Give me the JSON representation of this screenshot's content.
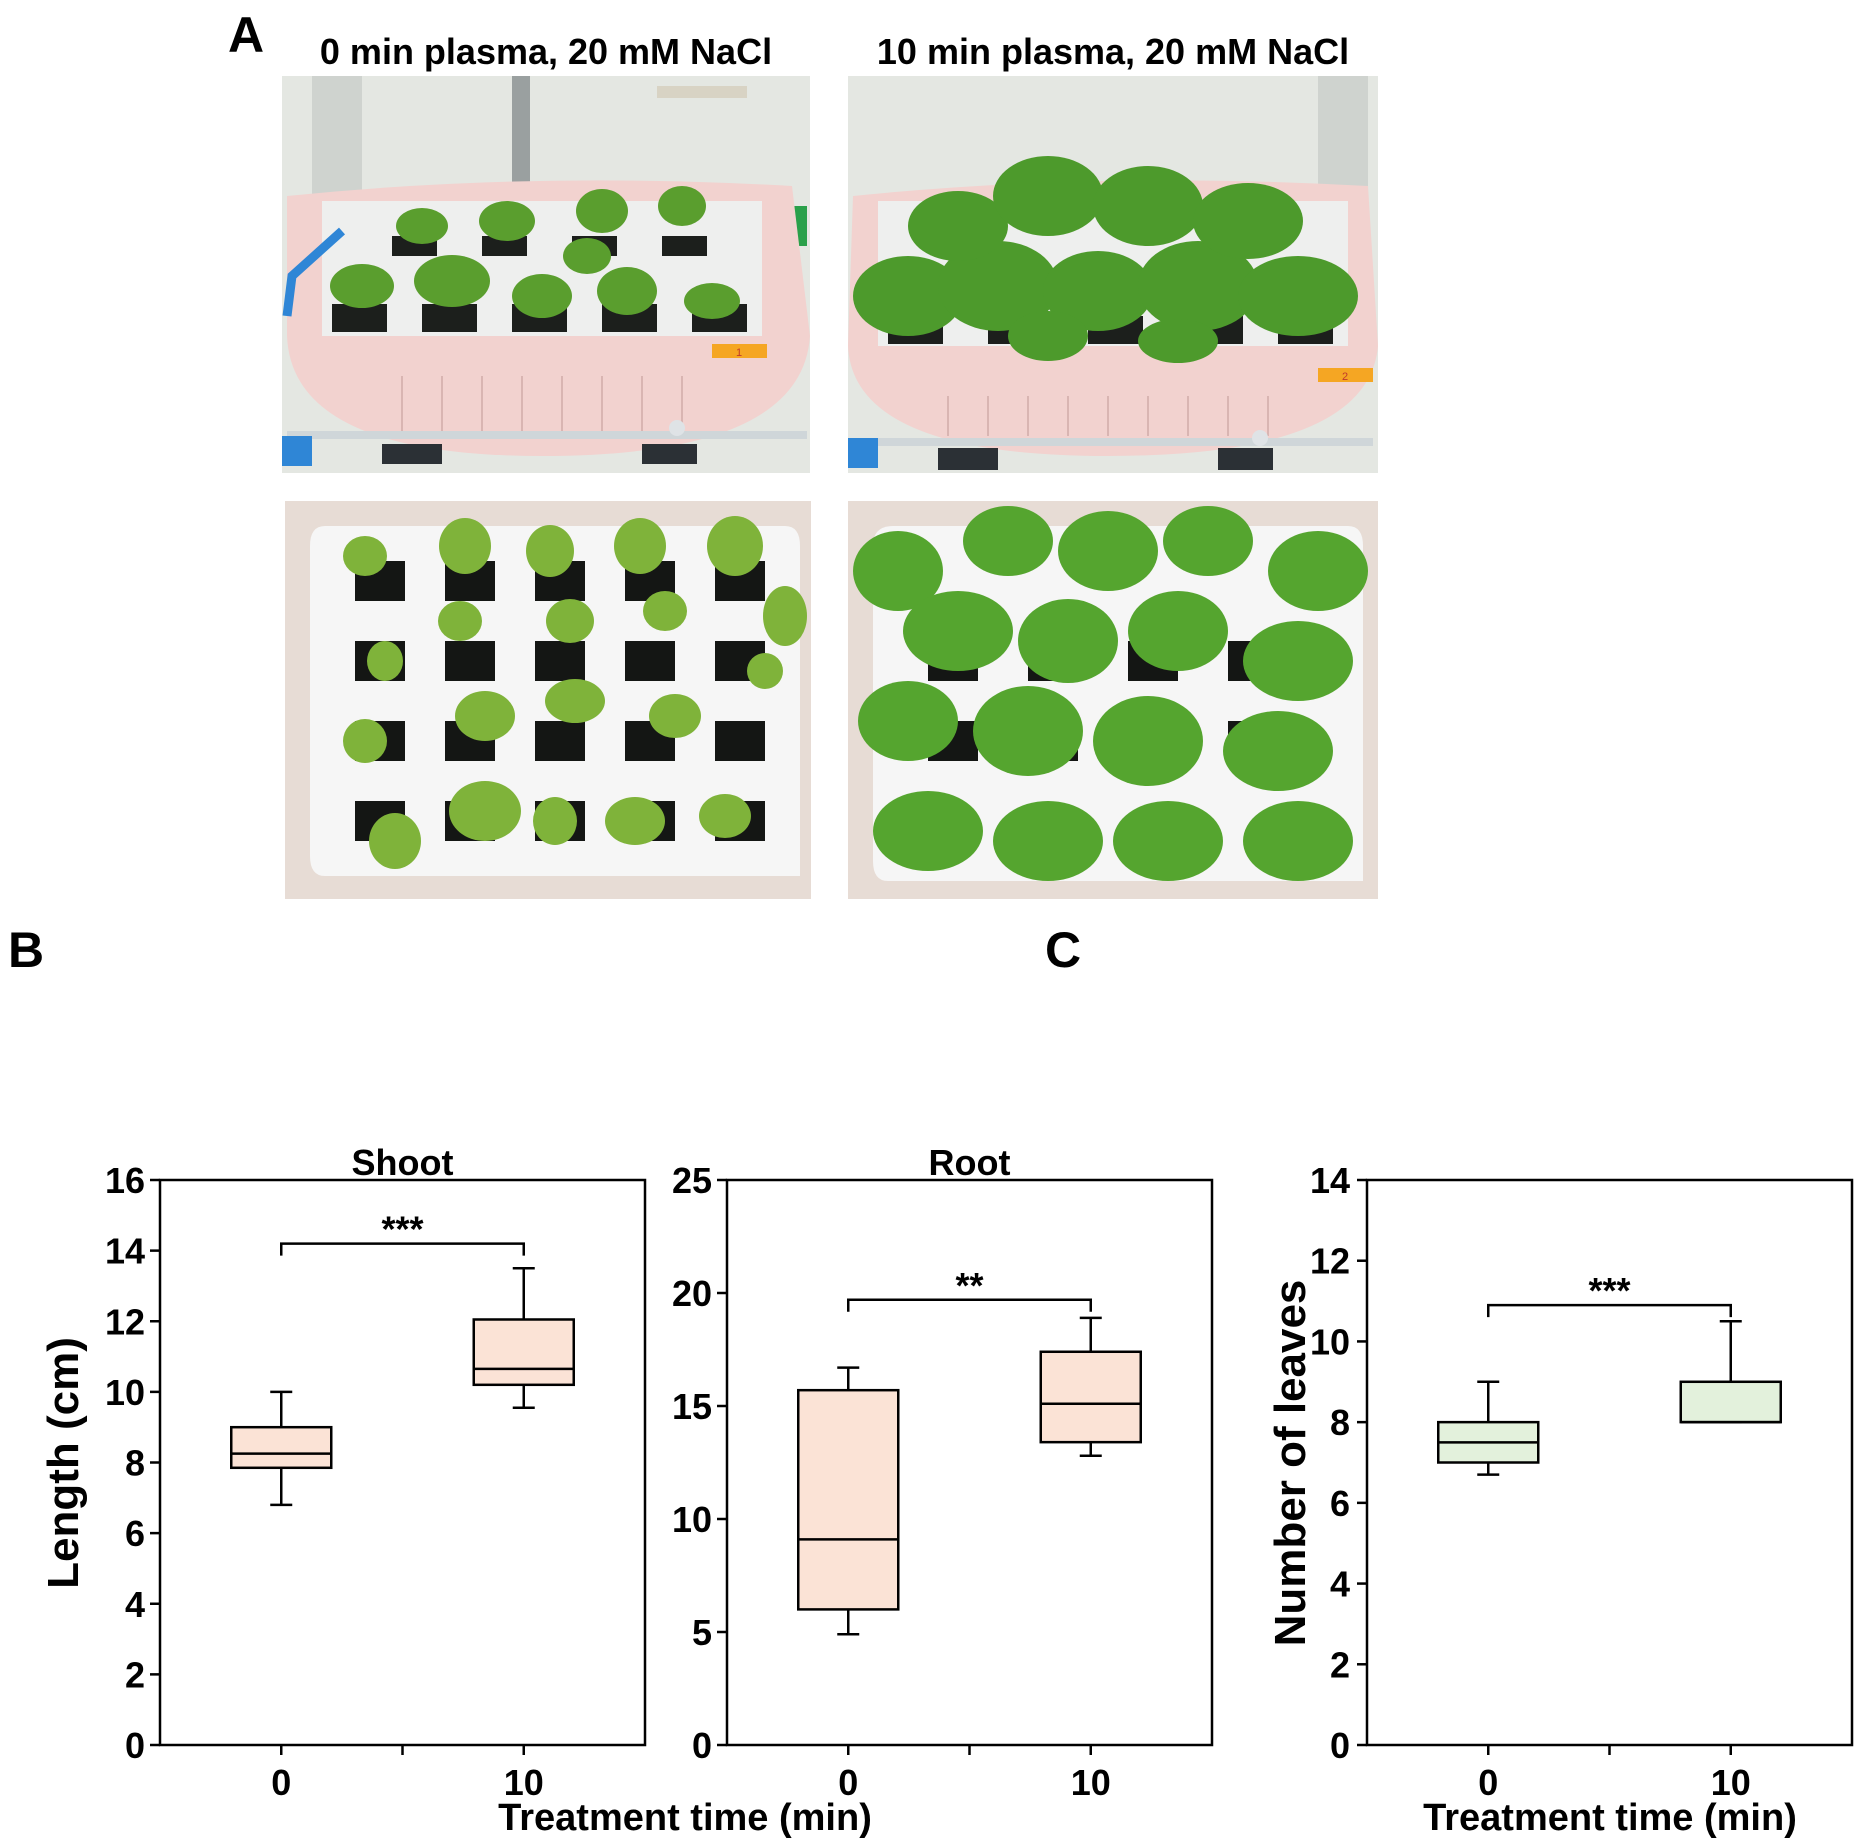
{
  "panel_labels": {
    "a": "A",
    "b": "B",
    "c": "C"
  },
  "photos": {
    "captions": [
      "0 min plasma, 20 mM NaCl",
      "10 min plasma, 20 mM NaCl"
    ],
    "tray_tags": [
      "1",
      "2"
    ]
  },
  "colors": {
    "shoot_root_box_fill": "#fbe3d6",
    "leaves_box_fill": "#e3f1dc",
    "axis": "#000000",
    "tray_pink": "#f2d2cf",
    "leaf_green": "#5a9e2e",
    "tube_blue": "#2f86d6"
  },
  "chart_data": [
    {
      "type": "box",
      "title": "Shoot",
      "ylabel": "Length (cm)",
      "xlabel": "",
      "ylim": [
        0,
        16
      ],
      "yticks": [
        0,
        2,
        4,
        6,
        8,
        10,
        12,
        14,
        16
      ],
      "categories": [
        "0",
        "10"
      ],
      "boxes": [
        {
          "category": "0",
          "whisker_low": 6.8,
          "q1": 7.85,
          "median": 8.25,
          "q3": 9.0,
          "whisker_high": 10.0
        },
        {
          "category": "10",
          "whisker_low": 9.55,
          "q1": 10.2,
          "median": 10.65,
          "q3": 12.05,
          "whisker_high": 13.5
        }
      ],
      "significance": {
        "label": "***",
        "y": 14.2
      },
      "grid": false
    },
    {
      "type": "box",
      "title": "Root",
      "ylabel": "",
      "xlabel": "Treatment time (min)",
      "ylim": [
        0,
        25
      ],
      "yticks": [
        0,
        5,
        10,
        15,
        20,
        25
      ],
      "categories": [
        "0",
        "10"
      ],
      "boxes": [
        {
          "category": "0",
          "whisker_low": 4.9,
          "q1": 6.0,
          "median": 9.1,
          "q3": 15.7,
          "whisker_high": 16.7
        },
        {
          "category": "10",
          "whisker_low": 12.8,
          "q1": 13.4,
          "median": 15.1,
          "q3": 17.4,
          "whisker_high": 18.9
        }
      ],
      "significance": {
        "label": "**",
        "y": 19.7
      },
      "grid": false
    },
    {
      "type": "box",
      "title": "",
      "ylabel": "Number of leaves",
      "xlabel": "Treatment time (min)",
      "ylim": [
        0,
        14
      ],
      "yticks": [
        0,
        2,
        4,
        6,
        8,
        10,
        12,
        14
      ],
      "categories": [
        "0",
        "10"
      ],
      "boxes": [
        {
          "category": "0",
          "whisker_low": 6.7,
          "q1": 7.0,
          "median": 7.5,
          "q3": 8.0,
          "whisker_high": 9.0
        },
        {
          "category": "10",
          "whisker_low": 8.0,
          "q1": 8.0,
          "median": 8.0,
          "q3": 9.0,
          "whisker_high": 10.5
        }
      ],
      "significance": {
        "label": "***",
        "y": 10.9
      },
      "grid": false
    }
  ]
}
